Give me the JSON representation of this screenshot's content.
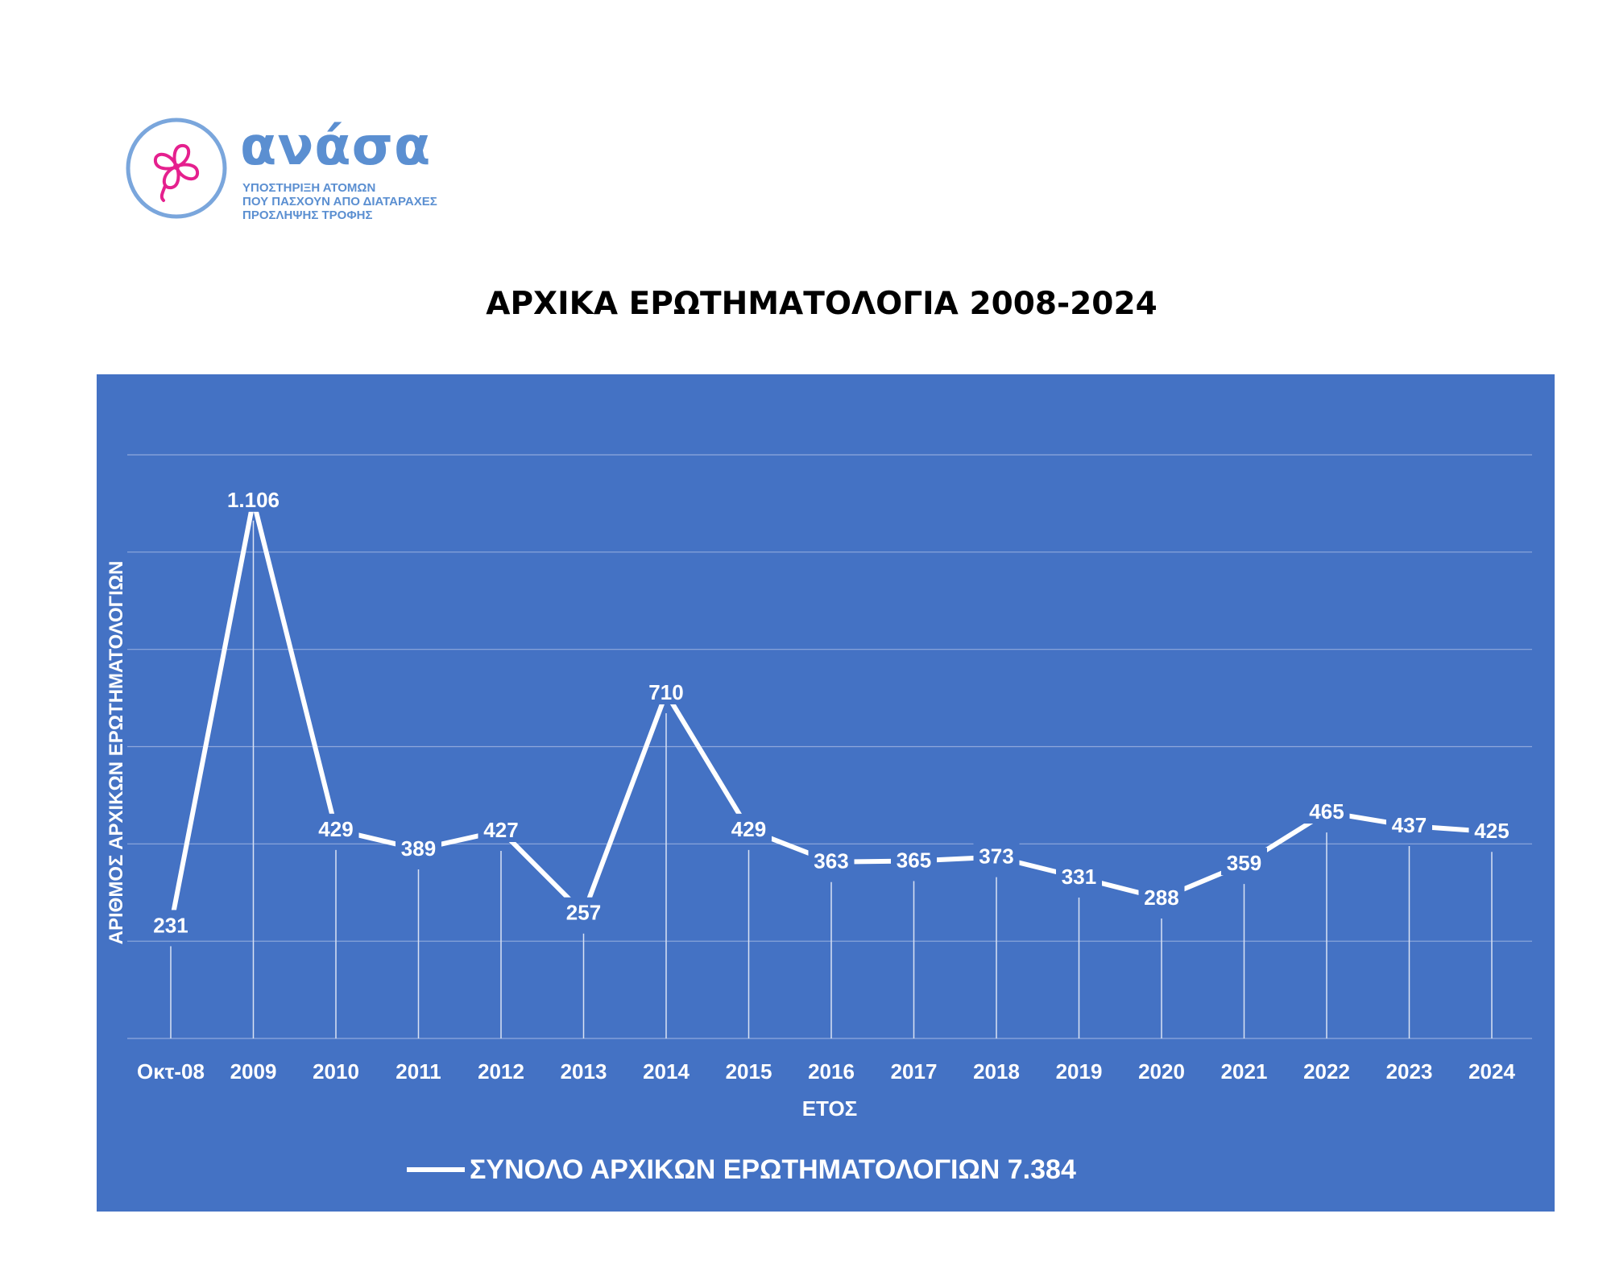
{
  "logo": {
    "name": "ανάσα",
    "tagline_lines": [
      "ΥΠΟΣΤΗΡΙΞΗ ΑΤΟΜΩΝ",
      "ΠΟΥ ΠΑΣΧΟΥΝ ΑΠΟ ΔΙΑΤΑΡΑΧΕΣ",
      "ΠΡΟΣΛΗΨΗΣ ΤΡΟΦΗΣ"
    ],
    "icon": "clover-heart-icon",
    "colors": {
      "text": "#5b8fd1",
      "ring": "#7aa6dc",
      "icon": "#e5208e"
    }
  },
  "title": "ΑΡΧΙΚΑ ΕΡΩΤΗΜΑΤΟΛΟΓΙΑ 2008-2024",
  "chart_data": {
    "type": "line",
    "categories": [
      "Οκτ-08",
      "2009",
      "2010",
      "2011",
      "2012",
      "2013",
      "2014",
      "2015",
      "2016",
      "2017",
      "2018",
      "2019",
      "2020",
      "2021",
      "2022",
      "2023",
      "2024"
    ],
    "series": [
      {
        "name": "ΣΥΝΟΛΟ ΑΡΧΙΚΩΝ ΕΡΩΤΗΜΑΤΟΛΟΓΙΩΝ 7.384",
        "values": [
          231,
          1106,
          429,
          389,
          427,
          257,
          710,
          429,
          363,
          365,
          373,
          331,
          288,
          359,
          465,
          437,
          425
        ],
        "data_labels": [
          "231",
          "1.106",
          "429",
          "389",
          "427",
          "257",
          "710",
          "429",
          "363",
          "365",
          "373",
          "331",
          "288",
          "359",
          "465",
          "437",
          "425"
        ],
        "color": "#ffffff"
      }
    ],
    "xlabel": "ΕΤΟΣ",
    "ylabel": "ΑΡΙΘΜΟΣ ΑΡΧΙΚΩΝ ΕΡΩΤΗΜΑΤΟΛΟΓΙΩΝ",
    "ylim": [
      0,
      1200
    ],
    "gridlines": [
      0,
      200,
      400,
      600,
      800,
      1000,
      1200
    ],
    "grid": true,
    "y_tick_labels_shown": false,
    "drop_lines": true,
    "legend_position": "bottom",
    "background": "#4472c4",
    "line_color": "#ffffff"
  }
}
